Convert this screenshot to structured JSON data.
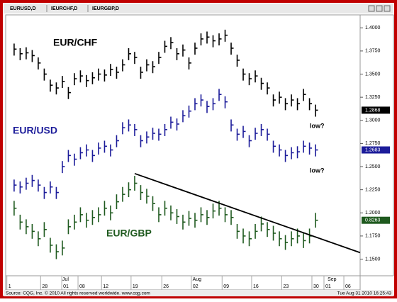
{
  "header": {
    "tabs": [
      "EURUSD,D",
      "IEURCHF,D",
      "IEURGBP,D"
    ]
  },
  "chart_data": {
    "type": "ohlc",
    "series": [
      {
        "name": "EUR/CHF",
        "color": "#000000",
        "last_price": 1.2868,
        "values": [
          1.377,
          1.372,
          1.373,
          1.37,
          1.362,
          1.35,
          1.338,
          1.335,
          1.342,
          1.33,
          1.345,
          1.348,
          1.343,
          1.346,
          1.35,
          1.349,
          1.355,
          1.352,
          1.36,
          1.372,
          1.368,
          1.352,
          1.36,
          1.358,
          1.368,
          1.38,
          1.384,
          1.372,
          1.376,
          1.362,
          1.378,
          1.388,
          1.39,
          1.386,
          1.388,
          1.392,
          1.378,
          1.365,
          1.35,
          1.345,
          1.348,
          1.34,
          1.335,
          1.322,
          1.325,
          1.318,
          1.322,
          1.318,
          1.328,
          1.318,
          1.311
        ],
        "highs": [
          1.383,
          1.378,
          1.379,
          1.376,
          1.368,
          1.356,
          1.344,
          1.341,
          1.348,
          1.336,
          1.351,
          1.354,
          1.349,
          1.352,
          1.356,
          1.355,
          1.361,
          1.358,
          1.366,
          1.378,
          1.374,
          1.358,
          1.366,
          1.364,
          1.374,
          1.386,
          1.39,
          1.378,
          1.382,
          1.368,
          1.384,
          1.394,
          1.396,
          1.392,
          1.394,
          1.398,
          1.384,
          1.371,
          1.356,
          1.351,
          1.354,
          1.346,
          1.341,
          1.328,
          1.331,
          1.324,
          1.328,
          1.324,
          1.334,
          1.324,
          1.317
        ],
        "lows": [
          1.37,
          1.365,
          1.366,
          1.363,
          1.355,
          1.343,
          1.331,
          1.328,
          1.335,
          1.323,
          1.338,
          1.341,
          1.336,
          1.339,
          1.343,
          1.342,
          1.348,
          1.345,
          1.353,
          1.365,
          1.361,
          1.345,
          1.353,
          1.351,
          1.361,
          1.373,
          1.377,
          1.365,
          1.369,
          1.355,
          1.371,
          1.381,
          1.383,
          1.379,
          1.381,
          1.385,
          1.371,
          1.358,
          1.343,
          1.338,
          1.341,
          1.333,
          1.328,
          1.315,
          1.318,
          1.311,
          1.315,
          1.311,
          1.321,
          1.311,
          1.304
        ]
      },
      {
        "name": "EUR/USD",
        "color": "#1c1c9a",
        "last_price": 1.2683,
        "values": [
          1.23,
          1.228,
          1.232,
          1.235,
          1.23,
          1.222,
          1.228,
          1.222,
          1.25,
          1.262,
          1.258,
          1.265,
          1.268,
          1.262,
          1.27,
          1.272,
          1.268,
          1.278,
          1.292,
          1.295,
          1.29,
          1.278,
          1.282,
          1.286,
          1.285,
          1.29,
          1.298,
          1.296,
          1.305,
          1.31,
          1.318,
          1.322,
          1.315,
          1.318,
          1.328,
          1.32,
          1.295,
          1.285,
          1.288,
          1.278,
          1.286,
          1.29,
          1.285,
          1.272,
          1.268,
          1.262,
          1.265,
          1.266,
          1.272,
          1.27,
          1.268
        ],
        "highs": [
          1.236,
          1.234,
          1.238,
          1.241,
          1.236,
          1.228,
          1.234,
          1.228,
          1.256,
          1.268,
          1.264,
          1.271,
          1.274,
          1.268,
          1.276,
          1.278,
          1.274,
          1.284,
          1.298,
          1.301,
          1.296,
          1.284,
          1.288,
          1.292,
          1.291,
          1.296,
          1.304,
          1.302,
          1.311,
          1.316,
          1.324,
          1.328,
          1.321,
          1.324,
          1.334,
          1.326,
          1.301,
          1.291,
          1.294,
          1.284,
          1.292,
          1.296,
          1.291,
          1.278,
          1.274,
          1.268,
          1.271,
          1.272,
          1.278,
          1.276,
          1.274
        ],
        "lows": [
          1.223,
          1.221,
          1.225,
          1.228,
          1.223,
          1.215,
          1.221,
          1.215,
          1.243,
          1.255,
          1.251,
          1.258,
          1.261,
          1.255,
          1.263,
          1.265,
          1.261,
          1.271,
          1.285,
          1.288,
          1.283,
          1.271,
          1.275,
          1.279,
          1.278,
          1.283,
          1.291,
          1.289,
          1.298,
          1.303,
          1.311,
          1.315,
          1.308,
          1.311,
          1.321,
          1.313,
          1.288,
          1.278,
          1.281,
          1.271,
          1.279,
          1.283,
          1.278,
          1.265,
          1.261,
          1.255,
          1.258,
          1.259,
          1.265,
          1.263,
          1.261
        ]
      },
      {
        "name": "EUR/GBP",
        "color": "#1f5a1f",
        "last_price": 0.8263,
        "values": [
          1.205,
          1.19,
          1.185,
          1.18,
          1.172,
          1.182,
          1.165,
          1.158,
          1.162,
          1.185,
          1.19,
          1.198,
          1.192,
          1.195,
          1.198,
          1.205,
          1.2,
          1.212,
          1.22,
          1.225,
          1.232,
          1.222,
          1.218,
          1.21,
          1.198,
          1.205,
          1.2,
          1.196,
          1.19,
          1.194,
          1.192,
          1.198,
          1.195,
          1.202,
          1.205,
          1.198,
          1.195,
          1.18,
          1.175,
          1.172,
          1.18,
          1.188,
          1.182,
          1.178,
          1.172,
          1.168,
          1.172,
          1.175,
          1.17,
          1.175,
          1.192
        ],
        "highs": [
          1.213,
          1.198,
          1.193,
          1.188,
          1.18,
          1.19,
          1.173,
          1.166,
          1.17,
          1.193,
          1.198,
          1.206,
          1.2,
          1.203,
          1.206,
          1.213,
          1.208,
          1.22,
          1.228,
          1.233,
          1.24,
          1.23,
          1.226,
          1.218,
          1.206,
          1.213,
          1.208,
          1.204,
          1.198,
          1.202,
          1.2,
          1.206,
          1.203,
          1.21,
          1.213,
          1.206,
          1.203,
          1.188,
          1.183,
          1.18,
          1.188,
          1.196,
          1.19,
          1.186,
          1.18,
          1.176,
          1.18,
          1.183,
          1.178,
          1.183,
          1.2
        ],
        "lows": [
          1.197,
          1.182,
          1.177,
          1.172,
          1.164,
          1.174,
          1.157,
          1.15,
          1.154,
          1.177,
          1.182,
          1.19,
          1.184,
          1.187,
          1.19,
          1.197,
          1.192,
          1.204,
          1.212,
          1.217,
          1.224,
          1.214,
          1.21,
          1.202,
          1.19,
          1.197,
          1.192,
          1.188,
          1.182,
          1.186,
          1.184,
          1.19,
          1.187,
          1.194,
          1.197,
          1.19,
          1.187,
          1.172,
          1.167,
          1.164,
          1.172,
          1.18,
          1.174,
          1.17,
          1.164,
          1.16,
          1.164,
          1.167,
          1.162,
          1.167,
          1.184
        ]
      }
    ],
    "xlim": [
      -1.4,
      57.4
    ],
    "ylim": [
      1.132,
      1.414
    ],
    "xticks": [
      {
        "value": -1.2,
        "label": "1"
      },
      {
        "value": 4.4,
        "label": "28"
      },
      {
        "value": 7.9,
        "label": "01"
      },
      {
        "value": 10.6,
        "label": "08"
      },
      {
        "value": 14.5,
        "label": "12"
      },
      {
        "value": 19.4,
        "label": "19"
      },
      {
        "value": 24.5,
        "label": "26"
      },
      {
        "value": 29.4,
        "label": "02"
      },
      {
        "value": 34.5,
        "label": "09"
      },
      {
        "value": 39.4,
        "label": "16"
      },
      {
        "value": 44.4,
        "label": "23"
      },
      {
        "value": 49.4,
        "label": "30"
      },
      {
        "value": 51.4,
        "label": "01"
      },
      {
        "value": 54.7,
        "label": "06"
      }
    ],
    "months": [
      {
        "value": 8,
        "label": "Jul"
      },
      {
        "value": 29.6,
        "label": "Aug"
      },
      {
        "value": 52,
        "label": "Sep"
      }
    ],
    "yticks": [
      {
        "value": 1.15,
        "label": "1.1500"
      },
      {
        "value": 1.175,
        "label": "1.1750"
      },
      {
        "value": 1.2,
        "label": "1.2000"
      },
      {
        "value": 1.225,
        "label": "1.2250"
      },
      {
        "value": 1.25,
        "label": "1.2500"
      },
      {
        "value": 1.275,
        "label": "1.2750"
      },
      {
        "value": 1.3,
        "label": "1.3000"
      },
      {
        "value": 1.325,
        "label": "1.3250"
      },
      {
        "value": 1.35,
        "label": "1.3500"
      },
      {
        "value": 1.375,
        "label": "1.3750"
      },
      {
        "value": 1.4,
        "label": "1.4000"
      }
    ],
    "trend_line": {
      "x0": 20,
      "y0": 1.2425,
      "x1": 57.4,
      "y1": 1.157
    },
    "annotations": [
      "low?",
      "low?"
    ]
  },
  "footer": {
    "source": "Source: CQG, Inc. © 2010 All rights reserved worldwide. www.cqg.com",
    "timestamp": "Tue Aug 31 2010 16:25:43"
  }
}
